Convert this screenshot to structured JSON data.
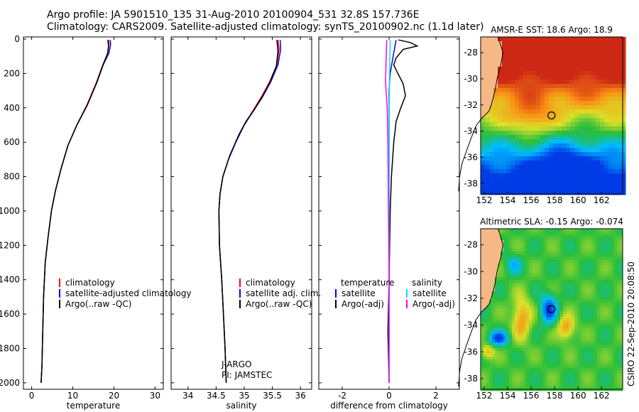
{
  "header": {
    "line1": "Argo profile: JA 5901510_135 31-Aug-2010 20100904_531 32.8S 157.736E",
    "line2": "Climatology: CARS2009. Satellite-adjusted climatology: synTS_20100902.nc (1.1d later)"
  },
  "side_stamp": "CSIRO 22-Sep-2010 20:08:50",
  "colors": {
    "climatology": "#ff0000",
    "satellite": "#0000ff",
    "argo": "#000000",
    "cyan": "#00e5ee",
    "magenta": "#ff00ff",
    "land": "#f4b987"
  },
  "chart_data": [
    {
      "type": "line",
      "xlabel": "temperature",
      "ylabel": "",
      "xlim": [
        -2,
        32
      ],
      "ylim": [
        2050,
        0
      ],
      "xticks": [
        "0",
        "10",
        "20",
        "30"
      ],
      "yticks": [
        "0",
        "200",
        "400",
        "600",
        "800",
        "1000",
        "1200",
        "1400",
        "1600",
        "1800",
        "2000"
      ],
      "legend": [
        "climatology",
        "satellite-adjusted climatology",
        "Argo(..raw -QC)"
      ],
      "series": [
        {
          "name": "climatology",
          "color": "red",
          "points": [
            [
              18.7,
              5
            ],
            [
              18.8,
              30
            ],
            [
              18.5,
              80
            ],
            [
              17.3,
              150
            ],
            [
              15.8,
              250
            ],
            [
              13.5,
              380
            ],
            [
              11,
              500
            ],
            [
              8.8,
              620
            ],
            [
              7.2,
              750
            ],
            [
              5.8,
              880
            ],
            [
              4.8,
              1000
            ],
            [
              4,
              1150
            ],
            [
              3.3,
              1300
            ],
            [
              2.9,
              1500
            ],
            [
              2.7,
              1700
            ],
            [
              2.5,
              1900
            ],
            [
              2.3,
              2000
            ]
          ]
        },
        {
          "name": "satellite-adjusted climatology",
          "color": "blue",
          "points": [
            [
              19.1,
              5
            ],
            [
              19.2,
              30
            ],
            [
              18.8,
              80
            ],
            [
              17.4,
              150
            ],
            [
              15.9,
              250
            ],
            [
              13.6,
              380
            ],
            [
              11,
              500
            ],
            [
              8.8,
              620
            ],
            [
              7.2,
              750
            ],
            [
              5.8,
              880
            ],
            [
              4.8,
              1000
            ],
            [
              4,
              1150
            ],
            [
              3.3,
              1300
            ],
            [
              2.9,
              1500
            ],
            [
              2.7,
              1700
            ],
            [
              2.5,
              1900
            ],
            [
              2.3,
              2000
            ]
          ]
        },
        {
          "name": "Argo(..raw -QC)",
          "color": "black",
          "points": [
            [
              18.5,
              5
            ],
            [
              18.7,
              40
            ],
            [
              18.4,
              90
            ],
            [
              17.2,
              160
            ],
            [
              15.7,
              260
            ],
            [
              13.4,
              390
            ],
            [
              11,
              500
            ],
            [
              8.8,
              620
            ],
            [
              7.2,
              750
            ],
            [
              5.8,
              880
            ],
            [
              4.8,
              1000
            ],
            [
              4,
              1150
            ],
            [
              3.3,
              1300
            ],
            [
              2.9,
              1500
            ],
            [
              2.7,
              1700
            ],
            [
              2.5,
              1900
            ],
            [
              2.3,
              2000
            ]
          ]
        }
      ]
    },
    {
      "type": "line",
      "xlabel": "salinity",
      "ylabel": "",
      "xlim": [
        33.7,
        36.2
      ],
      "ylim": [
        2050,
        0
      ],
      "xticks": [
        "34",
        "34.5",
        "35",
        "35.5",
        "36"
      ],
      "legend": [
        "climatology",
        "satellite adj. clim.",
        "Argo(..raw -QC)"
      ],
      "annotation": [
        "J-ARGO",
        "PI: JAMSTEC"
      ],
      "series": [
        {
          "name": "climatology",
          "color": "red",
          "points": [
            [
              35.6,
              5
            ],
            [
              35.62,
              60
            ],
            [
              35.58,
              150
            ],
            [
              35.45,
              250
            ],
            [
              35.3,
              340
            ],
            [
              35.15,
              420
            ],
            [
              35,
              500
            ],
            [
              34.85,
              600
            ],
            [
              34.72,
              700
            ],
            [
              34.62,
              800
            ],
            [
              34.57,
              900
            ],
            [
              34.55,
              1000
            ],
            [
              34.56,
              1200
            ],
            [
              34.6,
              1400
            ],
            [
              34.63,
              1600
            ],
            [
              34.66,
              1800
            ],
            [
              34.68,
              2000
            ]
          ]
        },
        {
          "name": "satellite adj. clim.",
          "color": "blue",
          "points": [
            [
              35.64,
              5
            ],
            [
              35.65,
              60
            ],
            [
              35.6,
              150
            ],
            [
              35.47,
              250
            ],
            [
              35.32,
              340
            ],
            [
              35.16,
              420
            ],
            [
              35,
              500
            ],
            [
              34.85,
              600
            ],
            [
              34.72,
              700
            ],
            [
              34.62,
              800
            ],
            [
              34.57,
              900
            ],
            [
              34.55,
              1000
            ],
            [
              34.56,
              1200
            ],
            [
              34.6,
              1400
            ],
            [
              34.63,
              1600
            ],
            [
              34.66,
              1800
            ],
            [
              34.68,
              2000
            ]
          ]
        },
        {
          "name": "Argo(..raw -QC)",
          "color": "black",
          "points": [
            [
              35.58,
              5
            ],
            [
              35.6,
              70
            ],
            [
              35.57,
              160
            ],
            [
              35.46,
              250
            ],
            [
              35.33,
              330
            ],
            [
              35.18,
              410
            ],
            [
              35.03,
              480
            ],
            [
              34.9,
              560
            ],
            [
              34.74,
              680
            ],
            [
              34.62,
              800
            ],
            [
              34.57,
              900
            ],
            [
              34.55,
              1000
            ],
            [
              34.56,
              1200
            ],
            [
              34.6,
              1400
            ],
            [
              34.63,
              1600
            ],
            [
              34.66,
              1800
            ],
            [
              34.68,
              2000
            ]
          ]
        }
      ]
    },
    {
      "type": "line",
      "xlabel": "difference from climatology",
      "ylabel": "",
      "xlim": [
        -3,
        3
      ],
      "ylim": [
        2050,
        0
      ],
      "xticks": [
        "-2",
        "0",
        "2"
      ],
      "legend_left_title": "temperature",
      "legend_right_title": "salinity",
      "legend": [
        "satellite",
        "Argo(-adj)",
        "satellite",
        "Argo(-adj)"
      ],
      "series": [
        {
          "name": "temperature satellite",
          "color": "blue",
          "points": [
            [
              0.3,
              5
            ],
            [
              0.2,
              80
            ],
            [
              0.05,
              200
            ],
            [
              0,
              300
            ],
            [
              0,
              500
            ],
            [
              0,
              2000
            ]
          ]
        },
        {
          "name": "temperature Argo(-adj)",
          "color": "black",
          "points": [
            [
              0.4,
              5
            ],
            [
              0.9,
              20
            ],
            [
              1.2,
              40
            ],
            [
              0.6,
              60
            ],
            [
              0.3,
              110
            ],
            [
              0.2,
              150
            ],
            [
              0.3,
              180
            ],
            [
              0.6,
              260
            ],
            [
              0.7,
              330
            ],
            [
              0.5,
              400
            ],
            [
              0.3,
              480
            ],
            [
              0.2,
              600
            ],
            [
              0.1,
              800
            ],
            [
              0.05,
              1000
            ],
            [
              0,
              1400
            ],
            [
              -0.05,
              1700
            ],
            [
              0,
              2000
            ]
          ]
        },
        {
          "name": "salinity satellite",
          "color": "cyan",
          "points": [
            [
              0.05,
              5
            ],
            [
              0.02,
              200
            ],
            [
              0.01,
              400
            ],
            [
              0,
              600
            ],
            [
              0,
              2000
            ]
          ]
        },
        {
          "name": "salinity Argo(-adj)",
          "color": "magenta",
          "points": [
            [
              -0.1,
              5
            ],
            [
              -0.12,
              100
            ],
            [
              -0.15,
              250
            ],
            [
              -0.08,
              400
            ],
            [
              -0.05,
              600
            ],
            [
              -0.03,
              1000
            ],
            [
              0,
              1400
            ],
            [
              0,
              2000
            ]
          ]
        }
      ]
    },
    {
      "type": "heatmap",
      "title": "AMSR-E SST: 18.6 Argo: 18.9",
      "xlim": [
        151.7,
        163.8
      ],
      "ylim": [
        -38.8,
        -26.8
      ],
      "xticks": [
        "152",
        "154",
        "156",
        "158",
        "160",
        "162"
      ],
      "yticks": [
        "-28",
        "-30",
        "-32",
        "-34",
        "-36",
        "-38"
      ],
      "marker": {
        "lon": 157.736,
        "lat": -32.8
      }
    },
    {
      "type": "heatmap",
      "title": "Altimetric SLA: -0.15 Argo: -0.074",
      "xlim": [
        151.7,
        163.8
      ],
      "ylim": [
        -38.8,
        -26.8
      ],
      "xticks": [
        "152",
        "154",
        "156",
        "158",
        "160",
        "162"
      ],
      "yticks": [
        "-28",
        "-30",
        "-32",
        "-34",
        "-36",
        "-38"
      ],
      "marker": {
        "lon": 157.736,
        "lat": -32.8
      }
    }
  ]
}
